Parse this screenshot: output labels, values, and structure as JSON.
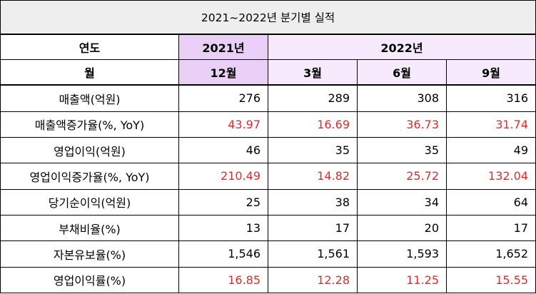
{
  "title": "2021~2022년 분기별 실적",
  "header": {
    "row_label_year": "연도",
    "row_label_month": "월",
    "year_2021": "2021년",
    "year_2022": "2022년",
    "months": [
      "12월",
      "3월",
      "6월",
      "9월"
    ]
  },
  "rows": [
    {
      "label": "매출액(억원)",
      "values": [
        "276",
        "289",
        "308",
        "316"
      ],
      "red": false
    },
    {
      "label": "매출액증가율(%, YoY)",
      "values": [
        "43.97",
        "16.69",
        "36.73",
        "31.74"
      ],
      "red": true
    },
    {
      "label": "영업이익(억원)",
      "values": [
        "46",
        "35",
        "35",
        "49"
      ],
      "red": false
    },
    {
      "label": "영업이익증가율(%, YoY)",
      "values": [
        "210.49",
        "14.82",
        "25.72",
        "132.04"
      ],
      "red": true
    },
    {
      "label": "당기순이익(억원)",
      "values": [
        "25",
        "38",
        "34",
        "64"
      ],
      "red": false
    },
    {
      "label": "부채비율(%)",
      "values": [
        "13",
        "17",
        "20",
        "17"
      ],
      "red": false
    },
    {
      "label": "자본유보율(%)",
      "values": [
        "1,546",
        "1,561",
        "1,593",
        "1,652"
      ],
      "red": false
    },
    {
      "label": "영업이익률(%)",
      "values": [
        "16.85",
        "12.28",
        "11.25",
        "15.55"
      ],
      "red": true
    }
  ],
  "colors": {
    "highlight": "#ead0f7",
    "highlight_light": "#f6eafc",
    "red_value": "#e02b2b",
    "title_bg": "#eeeeee"
  }
}
